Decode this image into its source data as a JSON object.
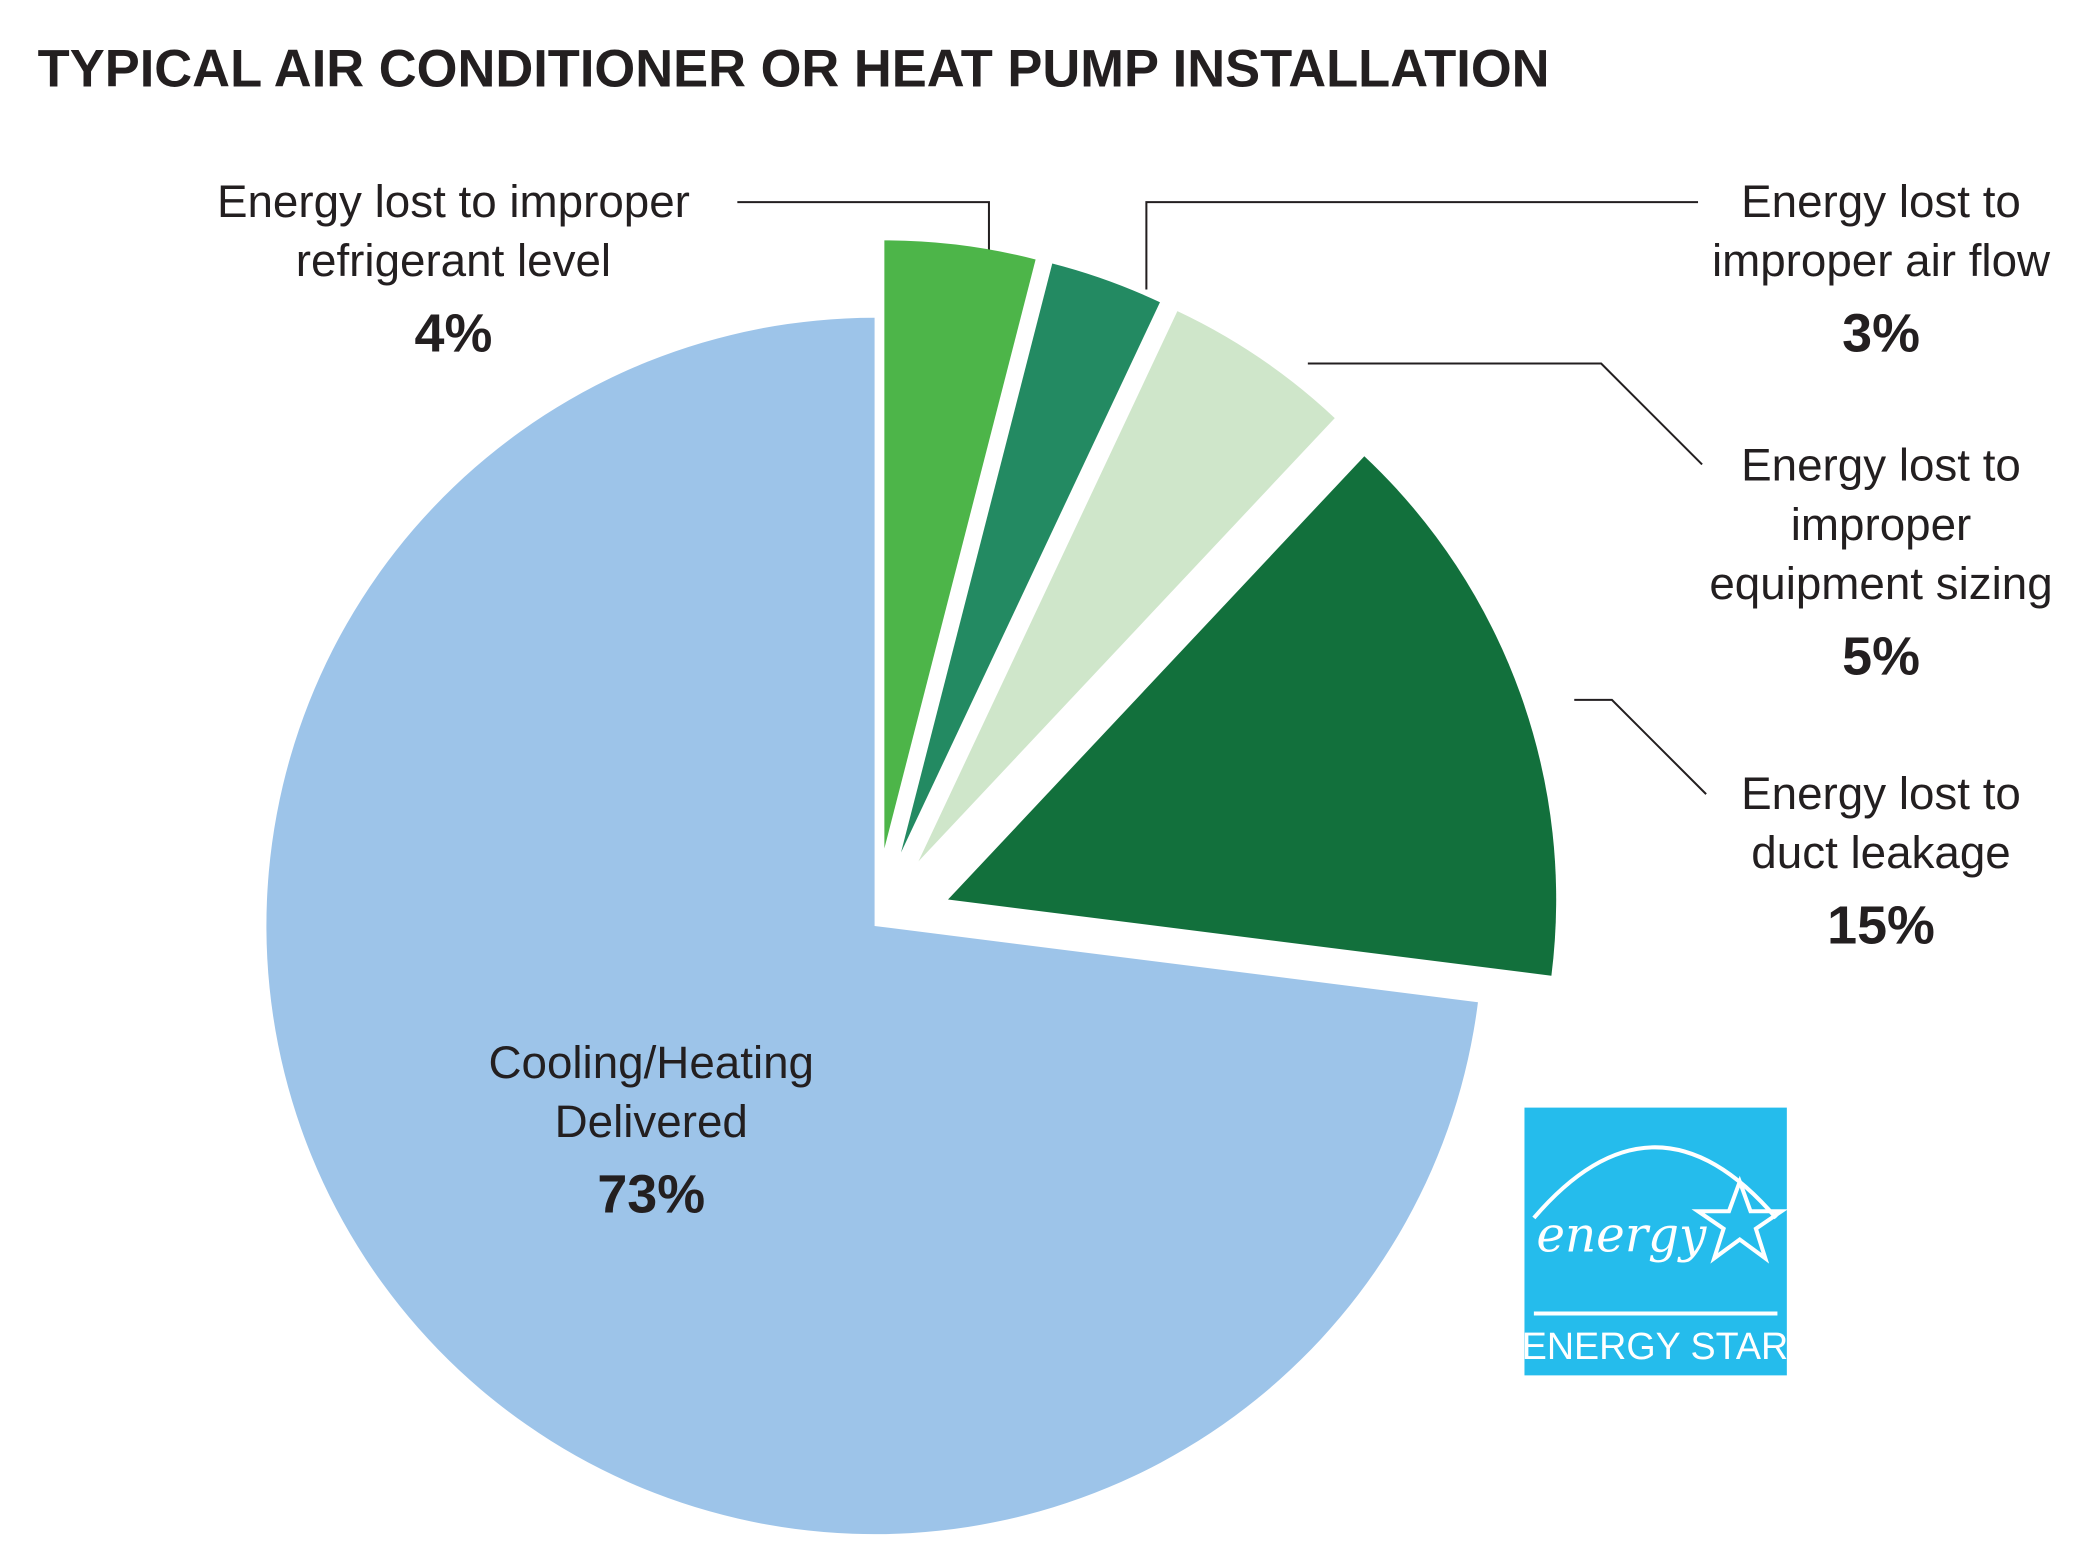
{
  "chart_data": {
    "type": "pie",
    "title": "TYPICAL AIR CONDITIONER OR HEAT PUMP INSTALLATION",
    "categories": [
      "Energy lost to improper refrigerant level",
      "Energy lost to improper air flow",
      "Energy lost to improper equipment sizing",
      "Energy lost to duct leakage",
      "Cooling/Heating Delivered"
    ],
    "values": [
      4,
      3,
      5,
      15,
      73
    ],
    "value_labels": [
      "4%",
      "3%",
      "5%",
      "15%",
      "73%"
    ],
    "colors": [
      "#4db549",
      "#238a62",
      "#cfe6ca",
      "#12703c",
      "#9dc4e9"
    ]
  },
  "logo": {
    "script": "energy",
    "text": "ENERGY STAR"
  }
}
